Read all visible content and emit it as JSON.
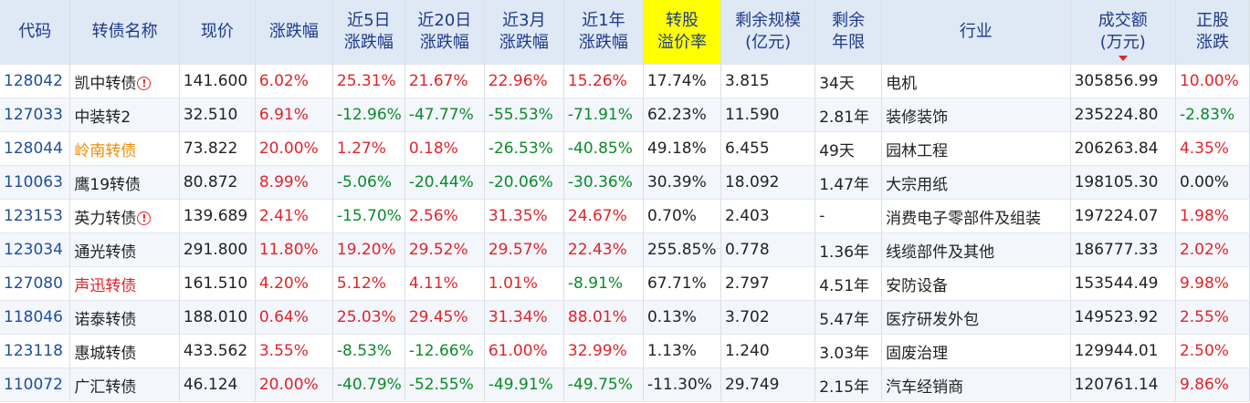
{
  "colors": {
    "header_bg": "#dfe8f5",
    "header_text": "#1d3a8a",
    "highlight": "#ffff00",
    "up": "#e0232b",
    "down": "#0a8a2a",
    "code": "#1f4e9a",
    "name_orange": "#f08c00"
  },
  "headers": {
    "code": "代码",
    "name": "转债名称",
    "price": "现价",
    "change": "涨跌幅",
    "d5_l1": "近5日",
    "d5_l2": "涨跌幅",
    "d20_l1": "近20日",
    "d20_l2": "涨跌幅",
    "m3_l1": "近3月",
    "m3_l2": "涨跌幅",
    "y1_l1": "近1年",
    "y1_l2": "涨跌幅",
    "premium_l1": "转股",
    "premium_l2": "溢价率",
    "scale_l1": "剩余规模",
    "scale_l2": "(亿元)",
    "term_l1": "剩余",
    "term_l2": "年限",
    "industry": "行业",
    "volume_l1": "成交额",
    "volume_l2": "(万元)",
    "stock_l1": "正股",
    "stock_l2": "涨跌"
  },
  "rows": [
    {
      "code": "128042",
      "name": "凯中转债",
      "warn": "!",
      "price": "141.600",
      "change": "6.02%",
      "d5": "25.31%",
      "d20": "21.67%",
      "m3": "22.96%",
      "y1": "15.26%",
      "premium": "17.74%",
      "scale": "3.815",
      "term": "34天",
      "industry": "电机",
      "volume": "305856.99",
      "stock": "10.00%"
    },
    {
      "code": "127033",
      "name": "中装转2",
      "warn": "",
      "price": "32.510",
      "change": "6.91%",
      "d5": "-12.96%",
      "d20": "-47.77%",
      "m3": "-55.53%",
      "y1": "-71.91%",
      "premium": "62.23%",
      "scale": "11.590",
      "term": "2.81年",
      "industry": "装修装饰",
      "volume": "235224.80",
      "stock": "-2.83%"
    },
    {
      "code": "128044",
      "name": "岭南转债",
      "warn": "",
      "price": "73.822",
      "change": "20.00%",
      "d5": "1.27%",
      "d20": "0.18%",
      "m3": "-26.53%",
      "y1": "-40.85%",
      "premium": "49.18%",
      "scale": "6.455",
      "term": "49天",
      "industry": "园林工程",
      "volume": "206263.84",
      "stock": "4.35%"
    },
    {
      "code": "110063",
      "name": "鹰19转债",
      "warn": "",
      "price": "80.872",
      "change": "8.99%",
      "d5": "-5.06%",
      "d20": "-20.44%",
      "m3": "-20.06%",
      "y1": "-30.36%",
      "premium": "30.39%",
      "scale": "18.092",
      "term": "1.47年",
      "industry": "大宗用纸",
      "volume": "198105.30",
      "stock": "0.00%"
    },
    {
      "code": "123153",
      "name": "英力转债",
      "warn": "!",
      "price": "139.689",
      "change": "2.41%",
      "d5": "-15.70%",
      "d20": "2.56%",
      "m3": "31.35%",
      "y1": "24.67%",
      "premium": "0.70%",
      "scale": "2.403",
      "term": "-",
      "industry": "消费电子零部件及组装",
      "volume": "197224.07",
      "stock": "1.98%"
    },
    {
      "code": "123034",
      "name": "通光转债",
      "warn": "",
      "price": "291.800",
      "change": "11.80%",
      "d5": "19.20%",
      "d20": "29.52%",
      "m3": "29.57%",
      "y1": "22.43%",
      "premium": "255.85%",
      "scale": "0.778",
      "term": "1.36年",
      "industry": "线缆部件及其他",
      "volume": "186777.33",
      "stock": "2.02%"
    },
    {
      "code": "127080",
      "name": "声迅转债",
      "warn": "",
      "price": "161.510",
      "change": "4.20%",
      "d5": "5.12%",
      "d20": "4.11%",
      "m3": "1.01%",
      "y1": "-8.91%",
      "premium": "67.71%",
      "scale": "2.797",
      "term": "4.51年",
      "industry": "安防设备",
      "volume": "153544.49",
      "stock": "9.98%"
    },
    {
      "code": "118046",
      "name": "诺泰转债",
      "warn": "",
      "price": "188.010",
      "change": "0.64%",
      "d5": "25.03%",
      "d20": "29.45%",
      "m3": "31.34%",
      "y1": "88.01%",
      "premium": "0.13%",
      "scale": "3.702",
      "term": "5.47年",
      "industry": "医疗研发外包",
      "volume": "149523.92",
      "stock": "2.55%"
    },
    {
      "code": "123118",
      "name": "惠城转债",
      "warn": "",
      "price": "433.562",
      "change": "3.55%",
      "d5": "-8.53%",
      "d20": "-12.66%",
      "m3": "61.00%",
      "y1": "32.99%",
      "premium": "1.13%",
      "scale": "1.240",
      "term": "3.03年",
      "industry": "固废治理",
      "volume": "129944.01",
      "stock": "2.50%"
    },
    {
      "code": "110072",
      "name": "广汇转债",
      "warn": "",
      "price": "46.124",
      "change": "20.00%",
      "d5": "-40.79%",
      "d20": "-52.55%",
      "m3": "-49.91%",
      "y1": "-49.75%",
      "premium": "-11.30%",
      "scale": "29.749",
      "term": "2.15年",
      "industry": "汽车经销商",
      "volume": "120761.14",
      "stock": "9.86%"
    }
  ]
}
